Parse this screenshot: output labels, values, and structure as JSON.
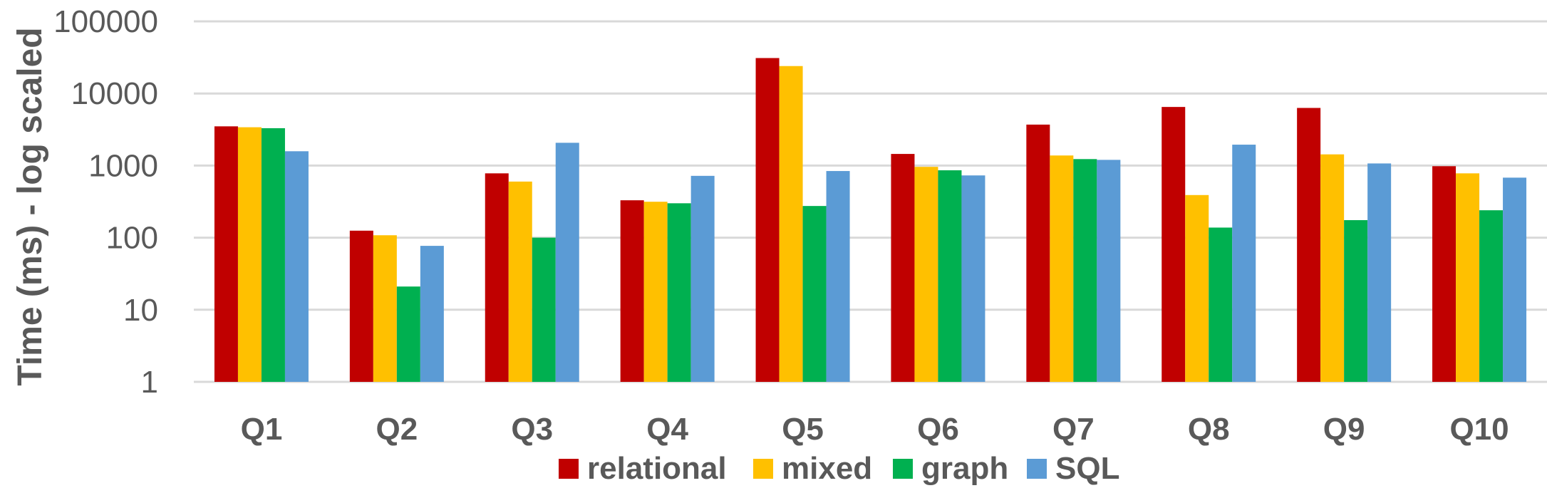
{
  "chart_data": {
    "type": "bar",
    "title": "",
    "xlabel": "",
    "ylabel": "Time (ms) - log scaled",
    "yscale": "log",
    "ylim": [
      1,
      100000
    ],
    "yticks": [
      "1",
      "10",
      "100",
      "1000",
      "10000",
      "100000"
    ],
    "grid": true,
    "legend_position": "bottom",
    "categories": [
      "Q1",
      "Q2",
      "Q3",
      "Q4",
      "Q5",
      "Q6",
      "Q7",
      "Q8",
      "Q9",
      "Q10"
    ],
    "series": [
      {
        "name": "relational",
        "color": "#c00000",
        "values": [
          3500,
          125,
          780,
          330,
          31000,
          1450,
          3700,
          6500,
          6300,
          980
        ]
      },
      {
        "name": "mixed",
        "color": "#ffc000",
        "values": [
          3400,
          108,
          600,
          315,
          24000,
          960,
          1380,
          390,
          1430,
          780
        ]
      },
      {
        "name": "graph",
        "color": "#00b050",
        "values": [
          3300,
          21,
          100,
          300,
          275,
          860,
          1230,
          138,
          175,
          240
        ]
      },
      {
        "name": "SQL",
        "color": "#5b9bd5",
        "values": [
          1580,
          77,
          2070,
          720,
          840,
          730,
          1200,
          1950,
          1070,
          680
        ]
      }
    ]
  }
}
